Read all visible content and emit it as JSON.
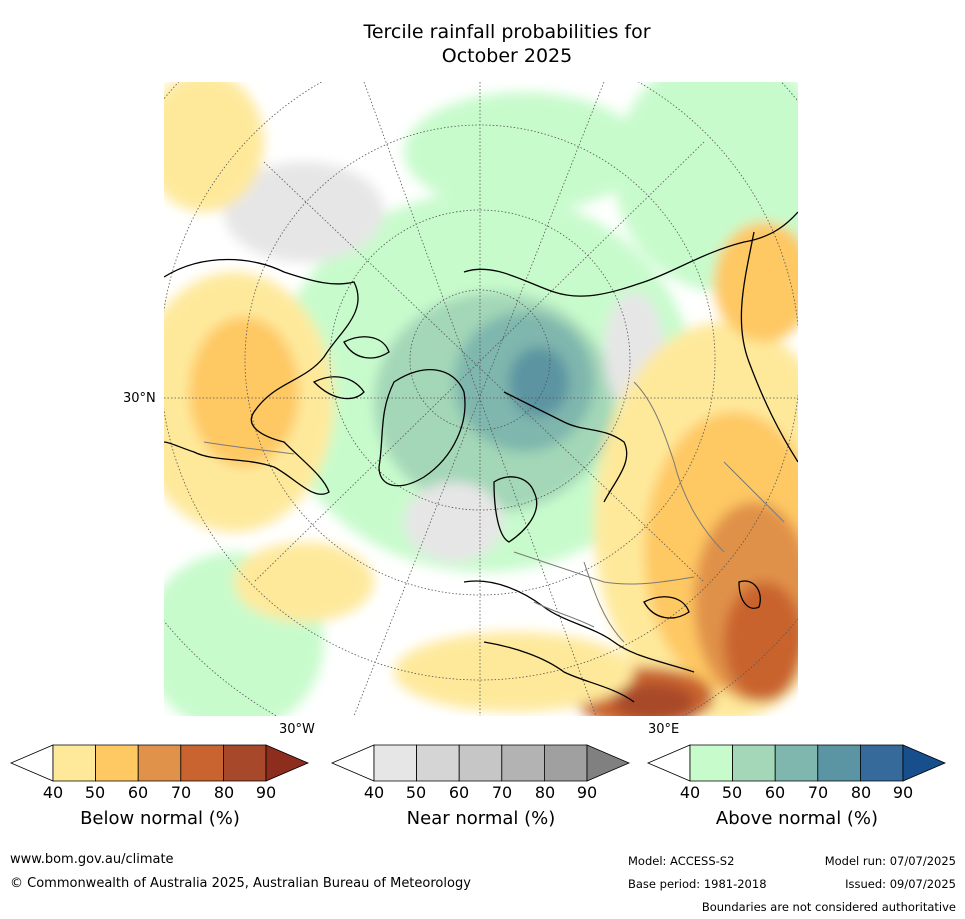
{
  "title_line1": "Tercile rainfall probabilities for",
  "title_line2": "October 2025",
  "map": {
    "lat_label": "30°N",
    "lon_label_west": "30°W",
    "lon_label_east": "30°E"
  },
  "legends": [
    {
      "label": "Below normal (%)",
      "ticks": [
        "40",
        "50",
        "60",
        "70",
        "80",
        "90"
      ],
      "colors": [
        "#ffffff",
        "#fee99b",
        "#fec863",
        "#e0914a",
        "#c9632f",
        "#a8482a",
        "#8c2d1e"
      ]
    },
    {
      "label": "Near normal (%)",
      "ticks": [
        "40",
        "50",
        "60",
        "70",
        "80",
        "90"
      ],
      "colors": [
        "#ffffff",
        "#e6e6e6",
        "#d5d5d5",
        "#c6c6c6",
        "#b3b3b3",
        "#a0a0a0",
        "#808080"
      ]
    },
    {
      "label": "Above normal (%)",
      "ticks": [
        "40",
        "50",
        "60",
        "70",
        "80",
        "90"
      ],
      "colors": [
        "#ffffff",
        "#c8fbcc",
        "#a3d7b7",
        "#7fb6ad",
        "#5b94a2",
        "#356a9a",
        "#174f8c"
      ]
    }
  ],
  "footer": {
    "website": "www.bom.gov.au/climate",
    "copyright": "© Commonwealth of Australia 2025, Australian Bureau of Meteorology",
    "model": "Model: ACCESS-S2",
    "model_run": "Model run: 07/07/2025",
    "base_period": "Base period: 1981-2018",
    "issued": "Issued: 09/07/2025",
    "disclaimer": "Boundaries are not considered authoritative"
  }
}
